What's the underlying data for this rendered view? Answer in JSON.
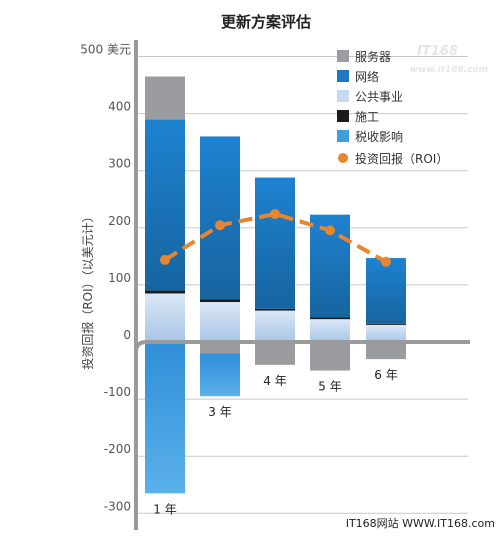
{
  "chart_data": {
    "type": "bar",
    "title": "更新方案评估",
    "ylabel": "投资回报（ROI）（以美元计）",
    "ylim": [
      -300,
      500
    ],
    "yticks": [
      {
        "value": 500,
        "label": "500 美元"
      },
      {
        "value": 400,
        "label": "400"
      },
      {
        "value": 300,
        "label": "300"
      },
      {
        "value": 200,
        "label": "200"
      },
      {
        "value": 100,
        "label": "100"
      },
      {
        "value": 0,
        "label": "0"
      },
      {
        "value": -100,
        "label": "-100"
      },
      {
        "value": -200,
        "label": "-200"
      },
      {
        "value": -300,
        "label": "-300"
      }
    ],
    "grid": true,
    "legend_position": "top-right",
    "categories": [
      "1 年",
      "3 年",
      "4 年",
      "5 年",
      "6 年"
    ],
    "series": [
      {
        "name": "服务器",
        "color": "#9a9c9f",
        "values": [
          465,
          -20,
          -40,
          -50,
          -30
        ]
      },
      {
        "name": "网络",
        "color": "#1f78bf",
        "values": [
          300,
          285,
          230,
          180,
          115
        ]
      },
      {
        "name": "公共事业",
        "color": "#c6d9f1",
        "values": [
          85,
          70,
          55,
          40,
          30
        ]
      },
      {
        "name": "施工",
        "color": "#1b1b1b",
        "values": [
          5,
          5,
          3,
          3,
          2
        ]
      },
      {
        "name": "税收影响",
        "color": "#3f9fdc",
        "values": [
          -265,
          -75,
          0,
          0,
          0
        ]
      }
    ],
    "line": {
      "name": "投资回报（ROI）",
      "color": "#e8852f",
      "values": [
        170,
        215,
        240,
        220,
        165
      ]
    }
  },
  "watermark": "IT168",
  "watermark_url": "www.it168.com",
  "source_credit": "IT168网站 WWW.IT168.com"
}
